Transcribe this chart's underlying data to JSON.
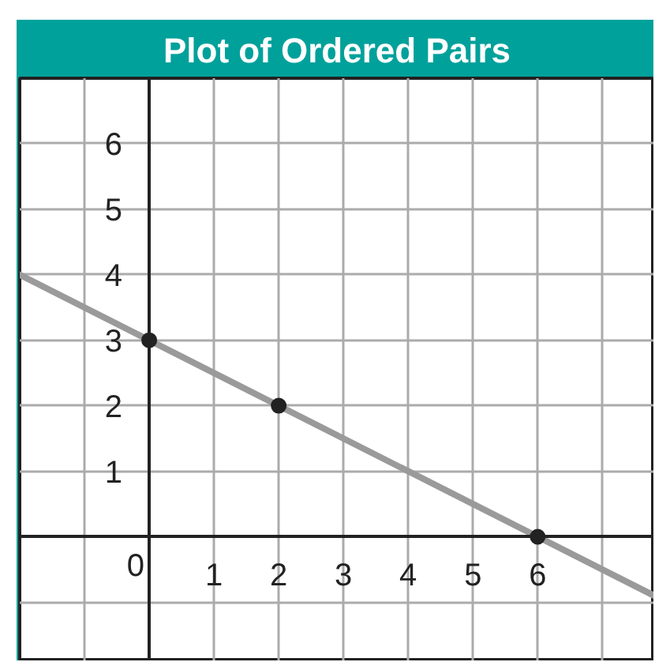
{
  "chart_data": {
    "type": "line",
    "title": "Plot of Ordered Pairs",
    "series": [
      {
        "color": "#9a9a9a",
        "x": [
          -2,
          7.8
        ],
        "values": [
          4,
          -0.9
        ]
      },
      {
        "type": "scatter",
        "color": "#222222",
        "marker": "circle",
        "x": [
          0,
          2,
          6
        ],
        "values": [
          3,
          2,
          0
        ]
      }
    ],
    "xlim": [
      -2,
      7.8
    ],
    "ylim": [
      -1.9,
      7
    ],
    "xticks": [
      {
        "value": -1,
        "label": null
      },
      0,
      1,
      2,
      3,
      4,
      5,
      6,
      {
        "value": 7,
        "label": null
      }
    ],
    "yticks": [
      {
        "value": -1,
        "label": null
      },
      1,
      2,
      3,
      4,
      5,
      6
    ],
    "grid": true
  }
}
